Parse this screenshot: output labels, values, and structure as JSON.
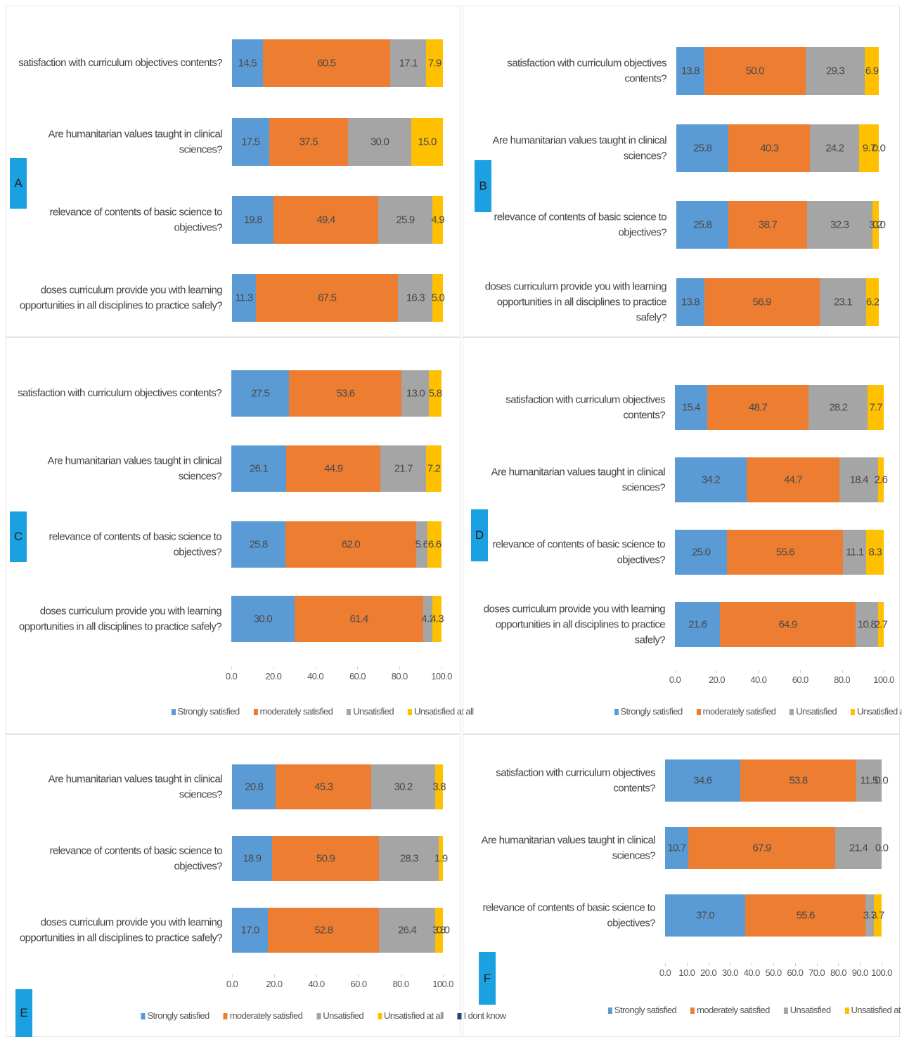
{
  "chart_data": [
    {
      "type": "bar",
      "orientation": "horizontal",
      "stacked": true,
      "panel_label": "A",
      "categories": [
        "satisfaction with curriculum objectives contents?",
        "Are humanitarian values taught in clinical sciences?",
        "relevance of contents of basic science to objectives?",
        "doses curriculum provide you with learning opportunities in all disciplines to practice safely?"
      ],
      "xlim": [
        0,
        100
      ],
      "series": [
        {
          "color": "#5b9bd5",
          "values": [
            14.5,
            17.5,
            19.8,
            11.3
          ],
          "value_labels": [
            "14.5",
            "17.5",
            "19.8",
            "11.3"
          ]
        },
        {
          "color": "#ed7d31",
          "values": [
            60.5,
            37.5,
            49.4,
            67.5
          ],
          "value_labels": [
            "60.5",
            "37.5",
            "49.4",
            "67.5"
          ]
        },
        {
          "color": "#a5a5a5",
          "values": [
            17.1,
            30.0,
            25.9,
            16.3
          ],
          "value_labels": [
            "17.1",
            "30.0",
            "25.9",
            "16.3"
          ]
        },
        {
          "color": "#ffc000",
          "values": [
            7.9,
            15.0,
            4.9,
            5.0
          ],
          "value_labels": [
            "7.9",
            "15.0",
            "4.9",
            "5.0"
          ]
        }
      ]
    },
    {
      "type": "bar",
      "orientation": "horizontal",
      "stacked": true,
      "panel_label": "B",
      "categories": [
        "satisfaction with curriculum objectives contents?",
        "Are humanitarian values taught in clinical sciences?",
        "relevance of contents of basic science to objectives?",
        "doses curriculum provide you with learning opportunities in all disciplines to practice safely?"
      ],
      "xlim": [
        0,
        100
      ],
      "series": [
        {
          "color": "#5b9bd5",
          "values": [
            13.8,
            25.8,
            25.8,
            13.8
          ],
          "value_labels": [
            "13.8",
            "25.8",
            "25.8",
            "13.8"
          ]
        },
        {
          "color": "#ed7d31",
          "values": [
            50.0,
            40.3,
            38.7,
            56.9
          ],
          "value_labels": [
            "50.0",
            "40.3",
            "38.7",
            "56.9"
          ]
        },
        {
          "color": "#a5a5a5",
          "values": [
            29.3,
            24.2,
            32.3,
            23.1
          ],
          "value_labels": [
            "29.3",
            "24.2",
            "32.3",
            "23.1"
          ]
        },
        {
          "color": "#ffc000",
          "values": [
            6.9,
            9.7,
            3.2,
            6.2
          ],
          "value_labels": [
            "6.9",
            "9.7",
            "3.2",
            "6.2"
          ]
        },
        {
          "color": "#264478",
          "values": [
            null,
            0.0,
            0.0,
            null
          ],
          "value_labels": [
            null,
            "0.0",
            "0.0",
            null
          ]
        }
      ]
    },
    {
      "type": "bar",
      "orientation": "horizontal",
      "stacked": true,
      "panel_label": "C",
      "categories": [
        "satisfaction with curriculum objectives contents?",
        "Are humanitarian values taught in clinical sciences?",
        "relevance of contents of basic science to objectives?",
        "doses curriculum provide you with learning opportunities in all disciplines to practice safely?"
      ],
      "xlim": [
        0,
        100
      ],
      "xticks": [
        {
          "value": 0,
          "label": "0.0"
        },
        {
          "value": 20,
          "label": "20.0"
        },
        {
          "value": 40,
          "label": "40.0"
        },
        {
          "value": 60,
          "label": "60.0"
        },
        {
          "value": 80,
          "label": "80.0"
        },
        {
          "value": 100,
          "label": "100.0"
        }
      ],
      "series": [
        {
          "name": "Strongly satisfied",
          "color": "#5b9bd5",
          "values": [
            27.5,
            26.1,
            25.8,
            30.0
          ],
          "value_labels": [
            "27.5",
            "26.1",
            "25.8",
            "30.0"
          ]
        },
        {
          "name": "moderately satisfied",
          "color": "#ed7d31",
          "values": [
            53.6,
            44.9,
            62.0,
            61.4
          ],
          "value_labels": [
            "53.6",
            "44.9",
            "62.0",
            "61.4"
          ]
        },
        {
          "name": "Unsatisfied",
          "color": "#a5a5a5",
          "values": [
            13.0,
            21.7,
            5.6,
            4.3
          ],
          "value_labels": [
            "13.0",
            "21.7",
            "5.6",
            "4.3"
          ]
        },
        {
          "name": "Unsatisfied at all",
          "color": "#ffc000",
          "values": [
            5.8,
            7.2,
            6.6,
            4.3
          ],
          "value_labels": [
            "5.8",
            "7.2",
            "6.6",
            "4.3"
          ]
        }
      ]
    },
    {
      "type": "bar",
      "orientation": "horizontal",
      "stacked": true,
      "panel_label": "D",
      "categories": [
        "satisfaction with curriculum objectives contents?",
        "Are humanitarian values taught in clinical sciences?",
        "relevance of contents of basic science to objectives?",
        "doses curriculum provide you with learning opportunities in all disciplines to practice safely?"
      ],
      "xlim": [
        0,
        100
      ],
      "xticks": [
        {
          "value": 0,
          "label": "0.0"
        },
        {
          "value": 20,
          "label": "20.0"
        },
        {
          "value": 40,
          "label": "40.0"
        },
        {
          "value": 60,
          "label": "60.0"
        },
        {
          "value": 80,
          "label": "80.0"
        },
        {
          "value": 100,
          "label": "100.0"
        }
      ],
      "series": [
        {
          "name": "Strongly satisfied",
          "color": "#5b9bd5",
          "values": [
            15.4,
            34.2,
            25.0,
            21.6
          ],
          "value_labels": [
            "15.4",
            "34.2",
            "25.0",
            "21.6"
          ]
        },
        {
          "name": "moderately satisfied",
          "color": "#ed7d31",
          "values": [
            48.7,
            44.7,
            55.6,
            64.9
          ],
          "value_labels": [
            "48.7",
            "44.7",
            "55.6",
            "64.9"
          ]
        },
        {
          "name": "Unsatisfied",
          "color": "#a5a5a5",
          "values": [
            28.2,
            18.4,
            11.1,
            10.8
          ],
          "value_labels": [
            "28.2",
            "18.4",
            "11.1",
            "10.8"
          ]
        },
        {
          "name": "Unsatisfied at all",
          "color": "#ffc000",
          "values": [
            7.7,
            2.6,
            8.3,
            2.7
          ],
          "value_labels": [
            "7.7",
            "2.6",
            "8.3",
            "2.7"
          ]
        }
      ]
    },
    {
      "type": "bar",
      "orientation": "horizontal",
      "stacked": true,
      "panel_label": "E",
      "categories": [
        "Are humanitarian values taught in clinical sciences?",
        "relevance of contents of basic science to objectives?",
        "doses curriculum provide you with learning opportunities in all disciplines to practice safely?"
      ],
      "xlim": [
        0,
        100
      ],
      "xticks": [
        {
          "value": 0,
          "label": "0.0"
        },
        {
          "value": 20,
          "label": "20.0"
        },
        {
          "value": 40,
          "label": "40.0"
        },
        {
          "value": 60,
          "label": "60.0"
        },
        {
          "value": 80,
          "label": "80.0"
        },
        {
          "value": 100,
          "label": "100.0"
        }
      ],
      "series": [
        {
          "name": "Strongly satisfied",
          "color": "#5b9bd5",
          "values": [
            20.8,
            18.9,
            17.0
          ],
          "value_labels": [
            "20.8",
            "18.9",
            "17.0"
          ]
        },
        {
          "name": "moderately satisfied",
          "color": "#ed7d31",
          "values": [
            45.3,
            50.9,
            52.8
          ],
          "value_labels": [
            "45.3",
            "50.9",
            "52.8"
          ]
        },
        {
          "name": "Unsatisfied",
          "color": "#a5a5a5",
          "values": [
            30.2,
            28.3,
            26.4
          ],
          "value_labels": [
            "30.2",
            "28.3",
            "26.4"
          ]
        },
        {
          "name": "Unsatisfied at all",
          "color": "#ffc000",
          "values": [
            3.8,
            1.9,
            3.8
          ],
          "value_labels": [
            "3.8",
            "1.9",
            "3.8"
          ]
        },
        {
          "name": "I dont know",
          "color": "#264478",
          "values": [
            null,
            null,
            0.0
          ],
          "value_labels": [
            null,
            null,
            "0.0"
          ]
        }
      ]
    },
    {
      "type": "bar",
      "orientation": "horizontal",
      "stacked": true,
      "panel_label": "F",
      "categories": [
        "satisfaction with curriculum objectives contents?",
        "Are humanitarian values taught in clinical sciences?",
        "relevance of contents of basic science to objectives?"
      ],
      "xlim": [
        0,
        100
      ],
      "xticks": [
        {
          "value": 0,
          "label": "0.0"
        },
        {
          "value": 10,
          "label": "10.0"
        },
        {
          "value": 20,
          "label": "20.0"
        },
        {
          "value": 30,
          "label": "30.0"
        },
        {
          "value": 40,
          "label": "40.0"
        },
        {
          "value": 50,
          "label": "50.0"
        },
        {
          "value": 60,
          "label": "60.0"
        },
        {
          "value": 70,
          "label": "70.0"
        },
        {
          "value": 80,
          "label": "80.0"
        },
        {
          "value": 90,
          "label": "90.0"
        },
        {
          "value": 100,
          "label": "100.0"
        }
      ],
      "series": [
        {
          "name": "Strongly satisfied",
          "color": "#5b9bd5",
          "values": [
            34.6,
            10.7,
            37.0
          ],
          "value_labels": [
            "34.6",
            "10.7",
            "37.0"
          ]
        },
        {
          "name": "moderately satisfied",
          "color": "#ed7d31",
          "values": [
            53.8,
            67.9,
            55.6
          ],
          "value_labels": [
            "53.8",
            "67.9",
            "55.6"
          ]
        },
        {
          "name": "Unsatisfied",
          "color": "#a5a5a5",
          "values": [
            11.5,
            21.4,
            3.7
          ],
          "value_labels": [
            "11.5",
            "21.4",
            "3.7"
          ]
        },
        {
          "name": "Unsatisfied at all",
          "color": "#ffc000",
          "values": [
            0.0,
            0.0,
            3.7
          ],
          "value_labels": [
            "0.0",
            "0.0",
            "3.7"
          ]
        }
      ]
    }
  ]
}
